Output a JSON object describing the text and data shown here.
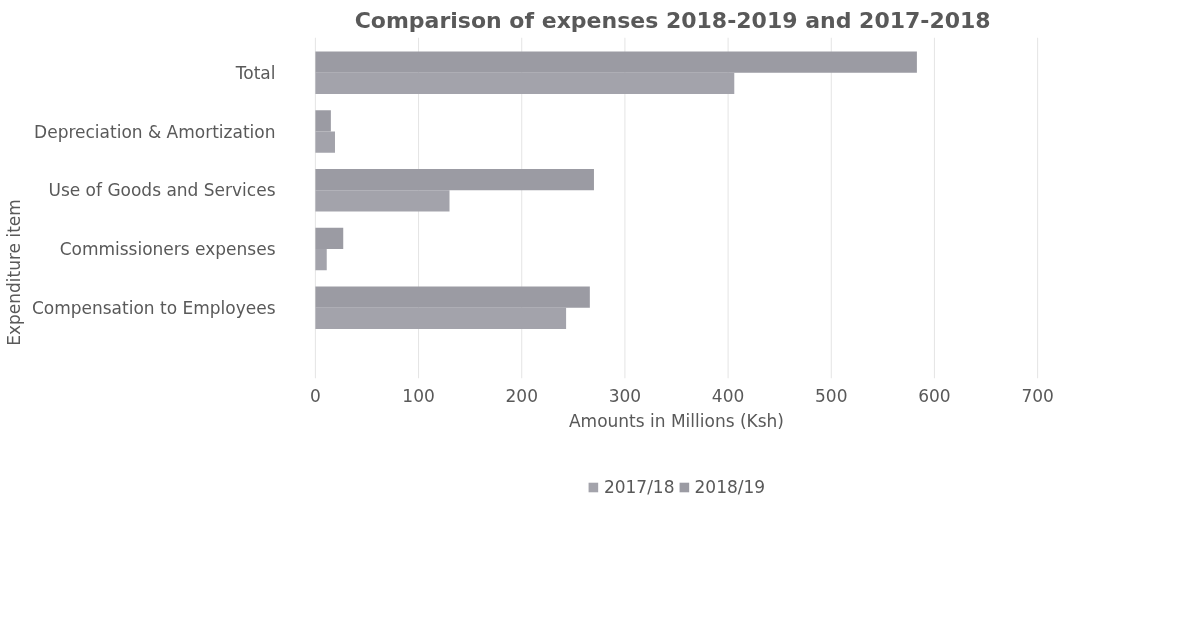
{
  "chart_data": {
    "type": "bar",
    "orientation": "horizontal",
    "title": "Comparison of expenses  2018-2019 and 2017-2018",
    "xlabel": "Amounts in Millions (Ksh)",
    "ylabel": "Expenditure item",
    "categories": [
      "Total",
      "Depreciation & Amortization",
      "Use of Goods and Services",
      "Commissioners expenses",
      "Compensation to Employees"
    ],
    "series": [
      {
        "name": "2017/18",
        "color": "#a3a3ab",
        "values": [
          406,
          19,
          130,
          11,
          243
        ]
      },
      {
        "name": "2018/19",
        "color": "#9b9ba3",
        "values": [
          583,
          15,
          270,
          27,
          266
        ]
      }
    ],
    "xlim": [
      0,
      700
    ],
    "xticks": [
      0,
      100,
      200,
      300,
      400,
      500,
      600,
      700
    ],
    "grid": "x",
    "legend": "bottom"
  }
}
